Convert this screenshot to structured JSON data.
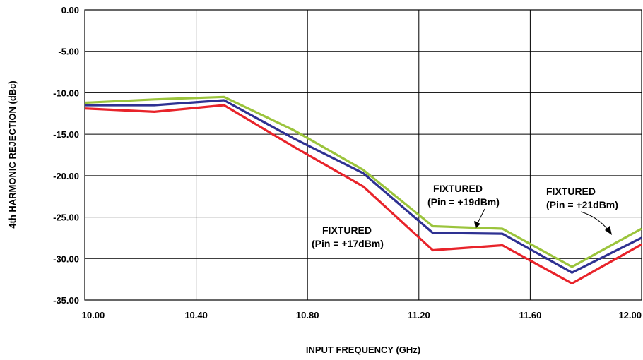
{
  "chart_data": {
    "type": "line",
    "title": "",
    "xlabel": "INPUT FREQUENCY (GHz)",
    "ylabel": "4th HARMONIC REJECTION (dBc)",
    "xlim": [
      10.0,
      12.0
    ],
    "ylim": [
      -35.0,
      0.0
    ],
    "x_ticks": [
      "10.00",
      "10.40",
      "10.80",
      "11.20",
      "11.60",
      "12.00"
    ],
    "y_ticks": [
      "0.00",
      "-5.00",
      "-10.00",
      "-15.00",
      "-20.00",
      "-25.00",
      "-30.00",
      "-35.00"
    ],
    "grid": true,
    "x": [
      10.0,
      10.25,
      10.5,
      10.75,
      11.0,
      11.25,
      11.5,
      11.75,
      12.0
    ],
    "series": [
      {
        "name": "FIXTURED (Pin = +17dBm)",
        "color": "#e8232a",
        "values": [
          -11.9,
          -12.3,
          -11.5,
          -16.5,
          -21.3,
          -29.0,
          -28.4,
          -33.0,
          -28.3
        ]
      },
      {
        "name": "FIXTURED (Pin = +19dBm)",
        "color": "#2e3192",
        "values": [
          -11.5,
          -11.5,
          -10.9,
          -15.5,
          -19.7,
          -26.9,
          -27.0,
          -31.7,
          -27.5
        ]
      },
      {
        "name": "FIXTURED (Pin = +21dBm)",
        "color": "#9bc43c",
        "values": [
          -11.2,
          -10.8,
          -10.5,
          -14.5,
          -19.3,
          -26.1,
          -26.4,
          -31.0,
          -26.4
        ]
      }
    ],
    "annotations": [
      {
        "line1": "FIXTURED",
        "line2": "(Pin = +17dBm)"
      },
      {
        "line1": "FIXTURED",
        "line2": "(Pin = +19dBm)"
      },
      {
        "line1": "FIXTURED",
        "line2": "(Pin = +21dBm)"
      }
    ]
  }
}
